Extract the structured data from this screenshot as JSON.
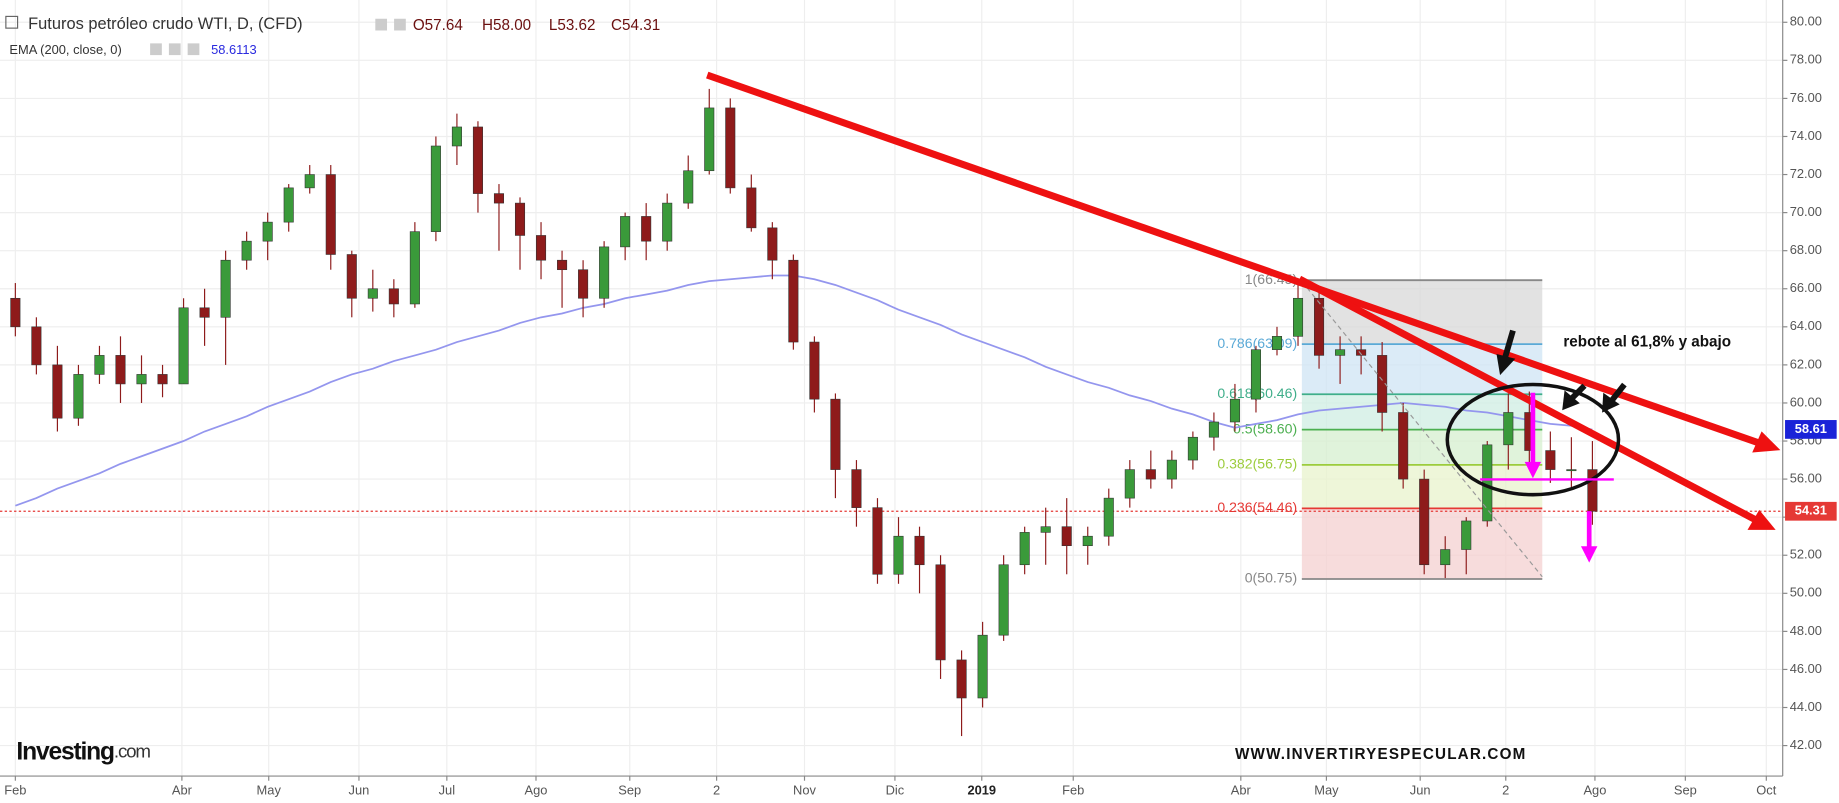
{
  "header": {
    "title": "Futuros petróleo crudo WTI, D, (CFD)",
    "ohlc": [
      "O57.64",
      "H58.00",
      "L53.62",
      "C54.31"
    ],
    "indicator": "EMA (200, close, 0)",
    "indicator_value": 58.6113
  },
  "chart_data": {
    "type": "candlestick",
    "up_color": "#3a9a3a",
    "down_color": "#8e1b1b",
    "ohlc": [
      [
        65.5,
        66.3,
        63.5,
        64
      ],
      [
        64,
        64.5,
        61.5,
        62
      ],
      [
        62,
        63,
        58.5,
        59.2
      ],
      [
        59.2,
        62,
        58.8,
        61.5
      ],
      [
        61.5,
        63,
        61,
        62.5
      ],
      [
        62.5,
        63.5,
        60,
        61
      ],
      [
        61,
        62.5,
        60,
        61.5
      ],
      [
        61.5,
        62,
        60.3,
        61
      ],
      [
        61,
        65.5,
        61,
        65
      ],
      [
        65,
        66,
        63,
        64.5
      ],
      [
        64.5,
        68,
        62,
        67.5
      ],
      [
        67.5,
        69,
        67,
        68.5
      ],
      [
        68.5,
        70,
        67.5,
        69.5
      ],
      [
        69.5,
        71.5,
        69,
        71.3
      ],
      [
        71.3,
        72.5,
        71,
        72
      ],
      [
        72,
        72.5,
        67,
        67.8
      ],
      [
        67.8,
        68,
        64.5,
        65.5
      ],
      [
        65.5,
        67,
        64.8,
        66
      ],
      [
        66,
        66.5,
        64.5,
        65.2
      ],
      [
        65.2,
        69.5,
        65,
        69
      ],
      [
        69,
        74,
        68.5,
        73.5
      ],
      [
        73.5,
        75.2,
        72.5,
        74.5
      ],
      [
        74.5,
        74.8,
        70,
        71
      ],
      [
        71,
        71.5,
        68,
        70.5
      ],
      [
        70.5,
        70.8,
        67,
        68.8
      ],
      [
        68.8,
        69.5,
        66.5,
        67.5
      ],
      [
        67.5,
        68,
        65,
        67
      ],
      [
        67,
        67.5,
        64.5,
        65.5
      ],
      [
        65.5,
        68.5,
        65,
        68.2
      ],
      [
        68.2,
        70,
        67.5,
        69.8
      ],
      [
        69.8,
        70.5,
        67.5,
        68.5
      ],
      [
        68.5,
        71,
        68,
        70.5
      ],
      [
        70.5,
        73,
        70.2,
        72.2
      ],
      [
        72.2,
        76.5,
        72,
        75.5
      ],
      [
        75.5,
        76,
        71,
        71.3
      ],
      [
        71.3,
        72,
        69,
        69.2
      ],
      [
        69.2,
        69.5,
        66.5,
        67.5
      ],
      [
        67.5,
        67.8,
        62.8,
        63.2
      ],
      [
        63.2,
        63.5,
        59.5,
        60.2
      ],
      [
        60.2,
        60.5,
        55,
        56.5
      ],
      [
        56.5,
        57,
        53.5,
        54.5
      ],
      [
        54.5,
        55,
        50.5,
        51
      ],
      [
        51,
        54,
        50.5,
        53
      ],
      [
        53,
        53.5,
        50,
        51.5
      ],
      [
        51.5,
        52,
        45.5,
        46.5
      ],
      [
        46.5,
        47,
        42.5,
        44.5
      ],
      [
        44.5,
        48.5,
        44,
        47.8
      ],
      [
        47.8,
        52,
        47.5,
        51.5
      ],
      [
        51.5,
        53.5,
        51,
        53.2
      ],
      [
        53.2,
        54.5,
        51.5,
        53.5
      ],
      [
        53.5,
        55,
        51,
        52.5
      ],
      [
        52.5,
        53.5,
        51.5,
        53
      ],
      [
        53,
        55.5,
        52.5,
        55
      ],
      [
        55,
        57,
        54.5,
        56.5
      ],
      [
        56.5,
        57.5,
        55.5,
        56
      ],
      [
        56,
        57.5,
        55.5,
        57
      ],
      [
        57,
        58.5,
        56.5,
        58.2
      ],
      [
        58.2,
        59.5,
        57.5,
        59
      ],
      [
        59,
        61,
        58.5,
        60.2
      ],
      [
        60.2,
        63,
        59.5,
        62.8
      ],
      [
        62.8,
        64,
        62.5,
        63.5
      ],
      [
        63.5,
        66.5,
        63,
        65.5
      ],
      [
        65.5,
        66,
        61.8,
        62.5
      ],
      [
        62.5,
        63.5,
        61,
        62.8
      ],
      [
        62.8,
        63.5,
        61.5,
        62.5
      ],
      [
        62.5,
        63.2,
        58.5,
        59.5
      ],
      [
        59.5,
        60,
        55.5,
        56
      ],
      [
        56,
        56.5,
        51,
        51.5
      ],
      [
        51.5,
        53,
        50.8,
        52.3
      ],
      [
        52.3,
        54,
        51,
        53.8
      ],
      [
        53.8,
        58,
        53.5,
        57.8
      ],
      [
        57.8,
        60.5,
        56.5,
        59.5
      ],
      [
        59.5,
        60.6,
        56.5,
        57.5
      ],
      [
        57.5,
        58.5,
        55.8,
        56.5
      ],
      [
        56.5,
        58.2,
        55.5,
        56.5
      ],
      [
        56.5,
        58,
        53.6,
        54.31
      ]
    ],
    "ema": {
      "color": "#9496ee",
      "values": [
        54.6,
        55.0,
        55.5,
        55.9,
        56.3,
        56.8,
        57.2,
        57.6,
        58.0,
        58.5,
        58.9,
        59.3,
        59.8,
        60.2,
        60.6,
        61.1,
        61.5,
        61.8,
        62.2,
        62.5,
        62.8,
        63.2,
        63.5,
        63.8,
        64.2,
        64.5,
        64.7,
        65.0,
        65.2,
        65.5,
        65.7,
        65.9,
        66.2,
        66.4,
        66.5,
        66.6,
        66.7,
        66.7,
        66.5,
        66.2,
        65.8,
        65.4,
        64.9,
        64.5,
        64.1,
        63.6,
        63.2,
        62.8,
        62.4,
        61.9,
        61.5,
        61.1,
        60.8,
        60.4,
        60.1,
        59.7,
        59.4,
        59.0,
        58.7,
        58.9,
        59.1,
        59.4,
        59.6,
        59.7,
        59.8,
        59.9,
        60.0,
        59.9,
        59.8,
        59.6,
        59.5,
        59.3,
        59.1,
        58.9,
        58.8,
        58.6
      ]
    },
    "xlim": [
      -0.73,
      84.05
    ],
    "xticks": [
      {
        "value": 0,
        "label": "Feb"
      },
      {
        "value": 7.92,
        "label": "Abr"
      },
      {
        "value": 12.05,
        "label": "May"
      },
      {
        "value": 16.34,
        "label": "Jun"
      },
      {
        "value": 20.52,
        "label": "Jul"
      },
      {
        "value": 24.76,
        "label": "Ago"
      },
      {
        "value": 29.22,
        "label": "Sep"
      },
      {
        "value": 33.35,
        "label": "2"
      },
      {
        "value": 37.53,
        "label": "Nov"
      },
      {
        "value": 41.83,
        "label": "Dic"
      },
      {
        "value": 45.96,
        "label": "2019"
      },
      {
        "value": 50.31,
        "label": "Feb"
      },
      {
        "value": 58.28,
        "label": "Abr"
      },
      {
        "value": 62.35,
        "label": "May"
      },
      {
        "value": 66.81,
        "label": "Jun"
      },
      {
        "value": 70.88,
        "label": "2"
      },
      {
        "value": 75.12,
        "label": "Ago"
      },
      {
        "value": 79.42,
        "label": "Sep"
      },
      {
        "value": 83.27,
        "label": "Oct"
      }
    ],
    "ylim": [
      40.4,
      81.17
    ],
    "yticks": [
      {
        "value": 42,
        "label": "42.00"
      },
      {
        "value": 44,
        "label": "44.00"
      },
      {
        "value": 46,
        "label": "46.00"
      },
      {
        "value": 48,
        "label": "48.00"
      },
      {
        "value": 50,
        "label": "50.00"
      },
      {
        "value": 52,
        "label": "52.00"
      },
      {
        "value": 54,
        "label": "54.00"
      },
      {
        "value": 56,
        "label": "56.00"
      },
      {
        "value": 58,
        "label": "58.00"
      },
      {
        "value": 60,
        "label": "60.00"
      },
      {
        "value": 62,
        "label": "62.00"
      },
      {
        "value": 64,
        "label": "64.00"
      },
      {
        "value": 66,
        "label": "66.00"
      },
      {
        "value": 68,
        "label": "68.00"
      },
      {
        "value": 70,
        "label": "70.00"
      },
      {
        "value": 72,
        "label": "72.00"
      },
      {
        "value": 74,
        "label": "74.00"
      },
      {
        "value": 76,
        "label": "76.00"
      },
      {
        "value": 78,
        "label": "78.00"
      },
      {
        "value": 80,
        "label": "80.00"
      }
    ],
    "grid": true,
    "last_price": 54.31,
    "last_price_color": "#e53935",
    "ema_last": 58.61,
    "ema_last_color": "#1a22d8",
    "fib_levels": [
      {
        "value": 66.45,
        "label": "1(66.45)",
        "color": "#888888",
        "fill": "#d8d8d8"
      },
      {
        "value": 63.09,
        "label": "0.786(63.09)",
        "color": "#5aa9d6",
        "fill": "#cfe4f4"
      },
      {
        "value": 60.46,
        "label": "0.618(60.46)",
        "color": "#3fae8a",
        "fill": "#cfeee3"
      },
      {
        "value": 58.6,
        "label": "0.5(58.60)",
        "color": "#4caf50",
        "fill": "#d6efcf"
      },
      {
        "value": 56.75,
        "label": "0.382(56.75)",
        "color": "#9ccc3c",
        "fill": "#e8f3cc"
      },
      {
        "value": 54.46,
        "label": "0.236(54.46)",
        "color": "#e53935",
        "fill": "#f4d0d0"
      },
      {
        "value": 50.75,
        "label": "0(50.75)",
        "color": "#888888"
      }
    ],
    "annotation": "rebote al 61,8% y abajo"
  },
  "watermark": "WWW.INVERTIRYESPECULAR.COM",
  "logo": {
    "brand": "Investing",
    "suffix": ".com"
  }
}
